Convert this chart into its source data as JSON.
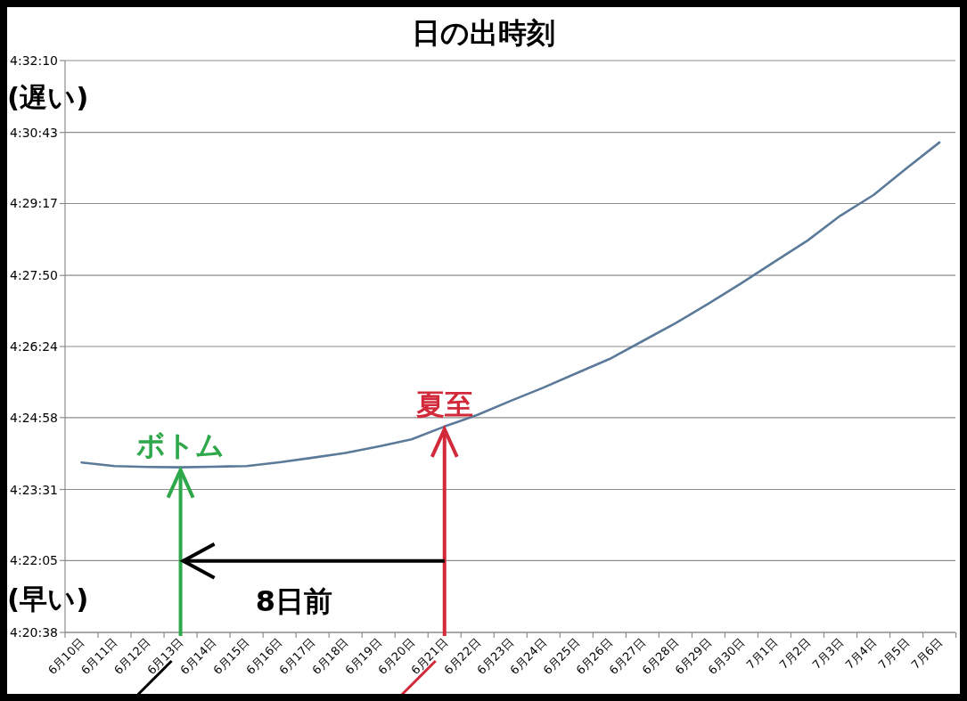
{
  "chart_data": {
    "type": "line",
    "title": "日の出時刻",
    "categories": [
      "6月10日",
      "6月11日",
      "6月12日",
      "6月13日",
      "6月14日",
      "6月15日",
      "6月16日",
      "6月17日",
      "6月18日",
      "6月19日",
      "6月20日",
      "6月21日",
      "6月22日",
      "6月23日",
      "6月24日",
      "6月25日",
      "6月26日",
      "6月27日",
      "6月28日",
      "6月29日",
      "6月30日",
      "7月1日",
      "7月2日",
      "7月3日",
      "7月4日",
      "7月5日",
      "7月6日"
    ],
    "series": [
      {
        "color": "#5b7a99",
        "values": [
          4.401,
          4.3998,
          4.3995,
          4.3994,
          4.3996,
          4.3998,
          4.4011,
          4.4026,
          4.4042,
          4.4064,
          4.4088,
          4.4131,
          4.417,
          4.4217,
          4.4262,
          4.431,
          4.4358,
          4.4418,
          4.4478,
          4.4544,
          4.4613,
          4.4685,
          4.4756,
          4.484,
          4.4909,
          4.4999,
          4.5086
        ]
      }
    ],
    "ylim": [
      4.343889,
      4.536111
    ],
    "yticks": [
      {
        "value": 4.343889,
        "label": "4:20:38"
      },
      {
        "value": 4.368056,
        "label": "4:22:05"
      },
      {
        "value": 4.391944,
        "label": "4:23:31"
      },
      {
        "value": 4.416111,
        "label": "4:24:58"
      },
      {
        "value": 4.44,
        "label": "4:26:24"
      },
      {
        "value": 4.463889,
        "label": "4:27:50"
      },
      {
        "value": 4.488056,
        "label": "4:29:17"
      },
      {
        "value": 4.511944,
        "label": "4:30:43"
      },
      {
        "value": 4.536111,
        "label": "4:32:10"
      }
    ],
    "grid": "y",
    "marker": "none",
    "line_style": "solid",
    "annotations": [
      "(遅い)",
      "(早い)",
      {
        "text": "ボトム",
        "x": "6月13日",
        "y": 4.3994
      },
      {
        "text": "夏至",
        "x": "6月21日",
        "y": 4.4131
      },
      "8日前"
    ]
  }
}
